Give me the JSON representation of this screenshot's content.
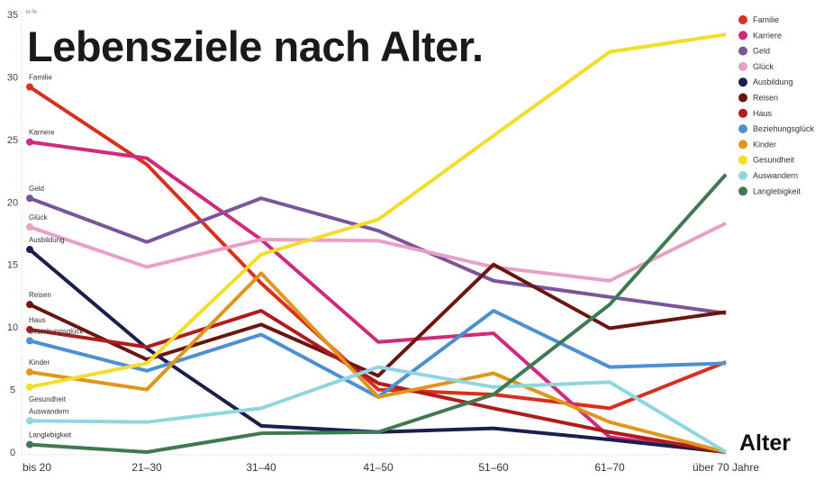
{
  "chart_data": {
    "type": "line",
    "title": "Lebensziele nach Alter.",
    "xlabel": "Alter",
    "ylabel": "in %",
    "ylim": [
      0,
      35
    ],
    "yticks": [
      "0",
      "5",
      "10",
      "15",
      "20",
      "25",
      "30",
      "35"
    ],
    "categories": [
      "bis 20",
      "21–30",
      "31–40",
      "41–50",
      "51–60",
      "61–70",
      "über 70 Jahre"
    ],
    "legend_position": "top-right",
    "grid": false,
    "series": [
      {
        "name": "Familie",
        "color": "#d7301f",
        "values": [
          29.2,
          23.0,
          13.5,
          5.0,
          4.6,
          3.5,
          7.2
        ]
      },
      {
        "name": "Karriere",
        "color": "#d02a7c",
        "values": [
          24.8,
          23.5,
          17.0,
          8.8,
          9.5,
          1.2,
          0
        ]
      },
      {
        "name": "Geld",
        "color": "#7b559c",
        "values": [
          20.3,
          16.8,
          20.3,
          17.7,
          13.7,
          12.4,
          11.1
        ]
      },
      {
        "name": "Glück",
        "color": "#e8a1c6",
        "values": [
          18.0,
          14.8,
          17.0,
          16.9,
          14.8,
          13.7,
          18.3
        ]
      },
      {
        "name": "Ausbildung",
        "color": "#1a1f4e",
        "values": [
          16.2,
          8.3,
          2.1,
          1.6,
          1.9,
          1.0,
          0
        ]
      },
      {
        "name": "Reisen",
        "color": "#6b1510",
        "values": [
          11.8,
          7.4,
          10.2,
          6.1,
          15.0,
          9.9,
          11.2
        ]
      },
      {
        "name": "Haus",
        "color": "#b01c1c",
        "values": [
          9.8,
          8.4,
          11.3,
          5.5,
          3.5,
          1.6,
          0
        ]
      },
      {
        "name": "Beziehungsglück",
        "color": "#4d8fd3",
        "values": [
          8.9,
          6.5,
          9.4,
          4.4,
          11.3,
          6.8,
          7.1
        ]
      },
      {
        "name": "Kinder",
        "color": "#e0951c",
        "values": [
          6.4,
          5.0,
          14.3,
          4.4,
          6.3,
          2.4,
          0
        ]
      },
      {
        "name": "Gesundheit",
        "color": "#f3dc2a",
        "values": [
          5.2,
          7.1,
          15.8,
          18.6,
          25.3,
          32.0,
          33.4
        ]
      },
      {
        "name": "Auswandern",
        "color": "#8fd6df",
        "values": [
          2.5,
          2.4,
          3.5,
          6.8,
          5.2,
          5.6,
          0
        ]
      },
      {
        "name": "Langlebigkeit",
        "color": "#3e7a51",
        "values": [
          0.6,
          0.0,
          1.5,
          1.6,
          4.6,
          11.8,
          22.2
        ]
      }
    ]
  }
}
